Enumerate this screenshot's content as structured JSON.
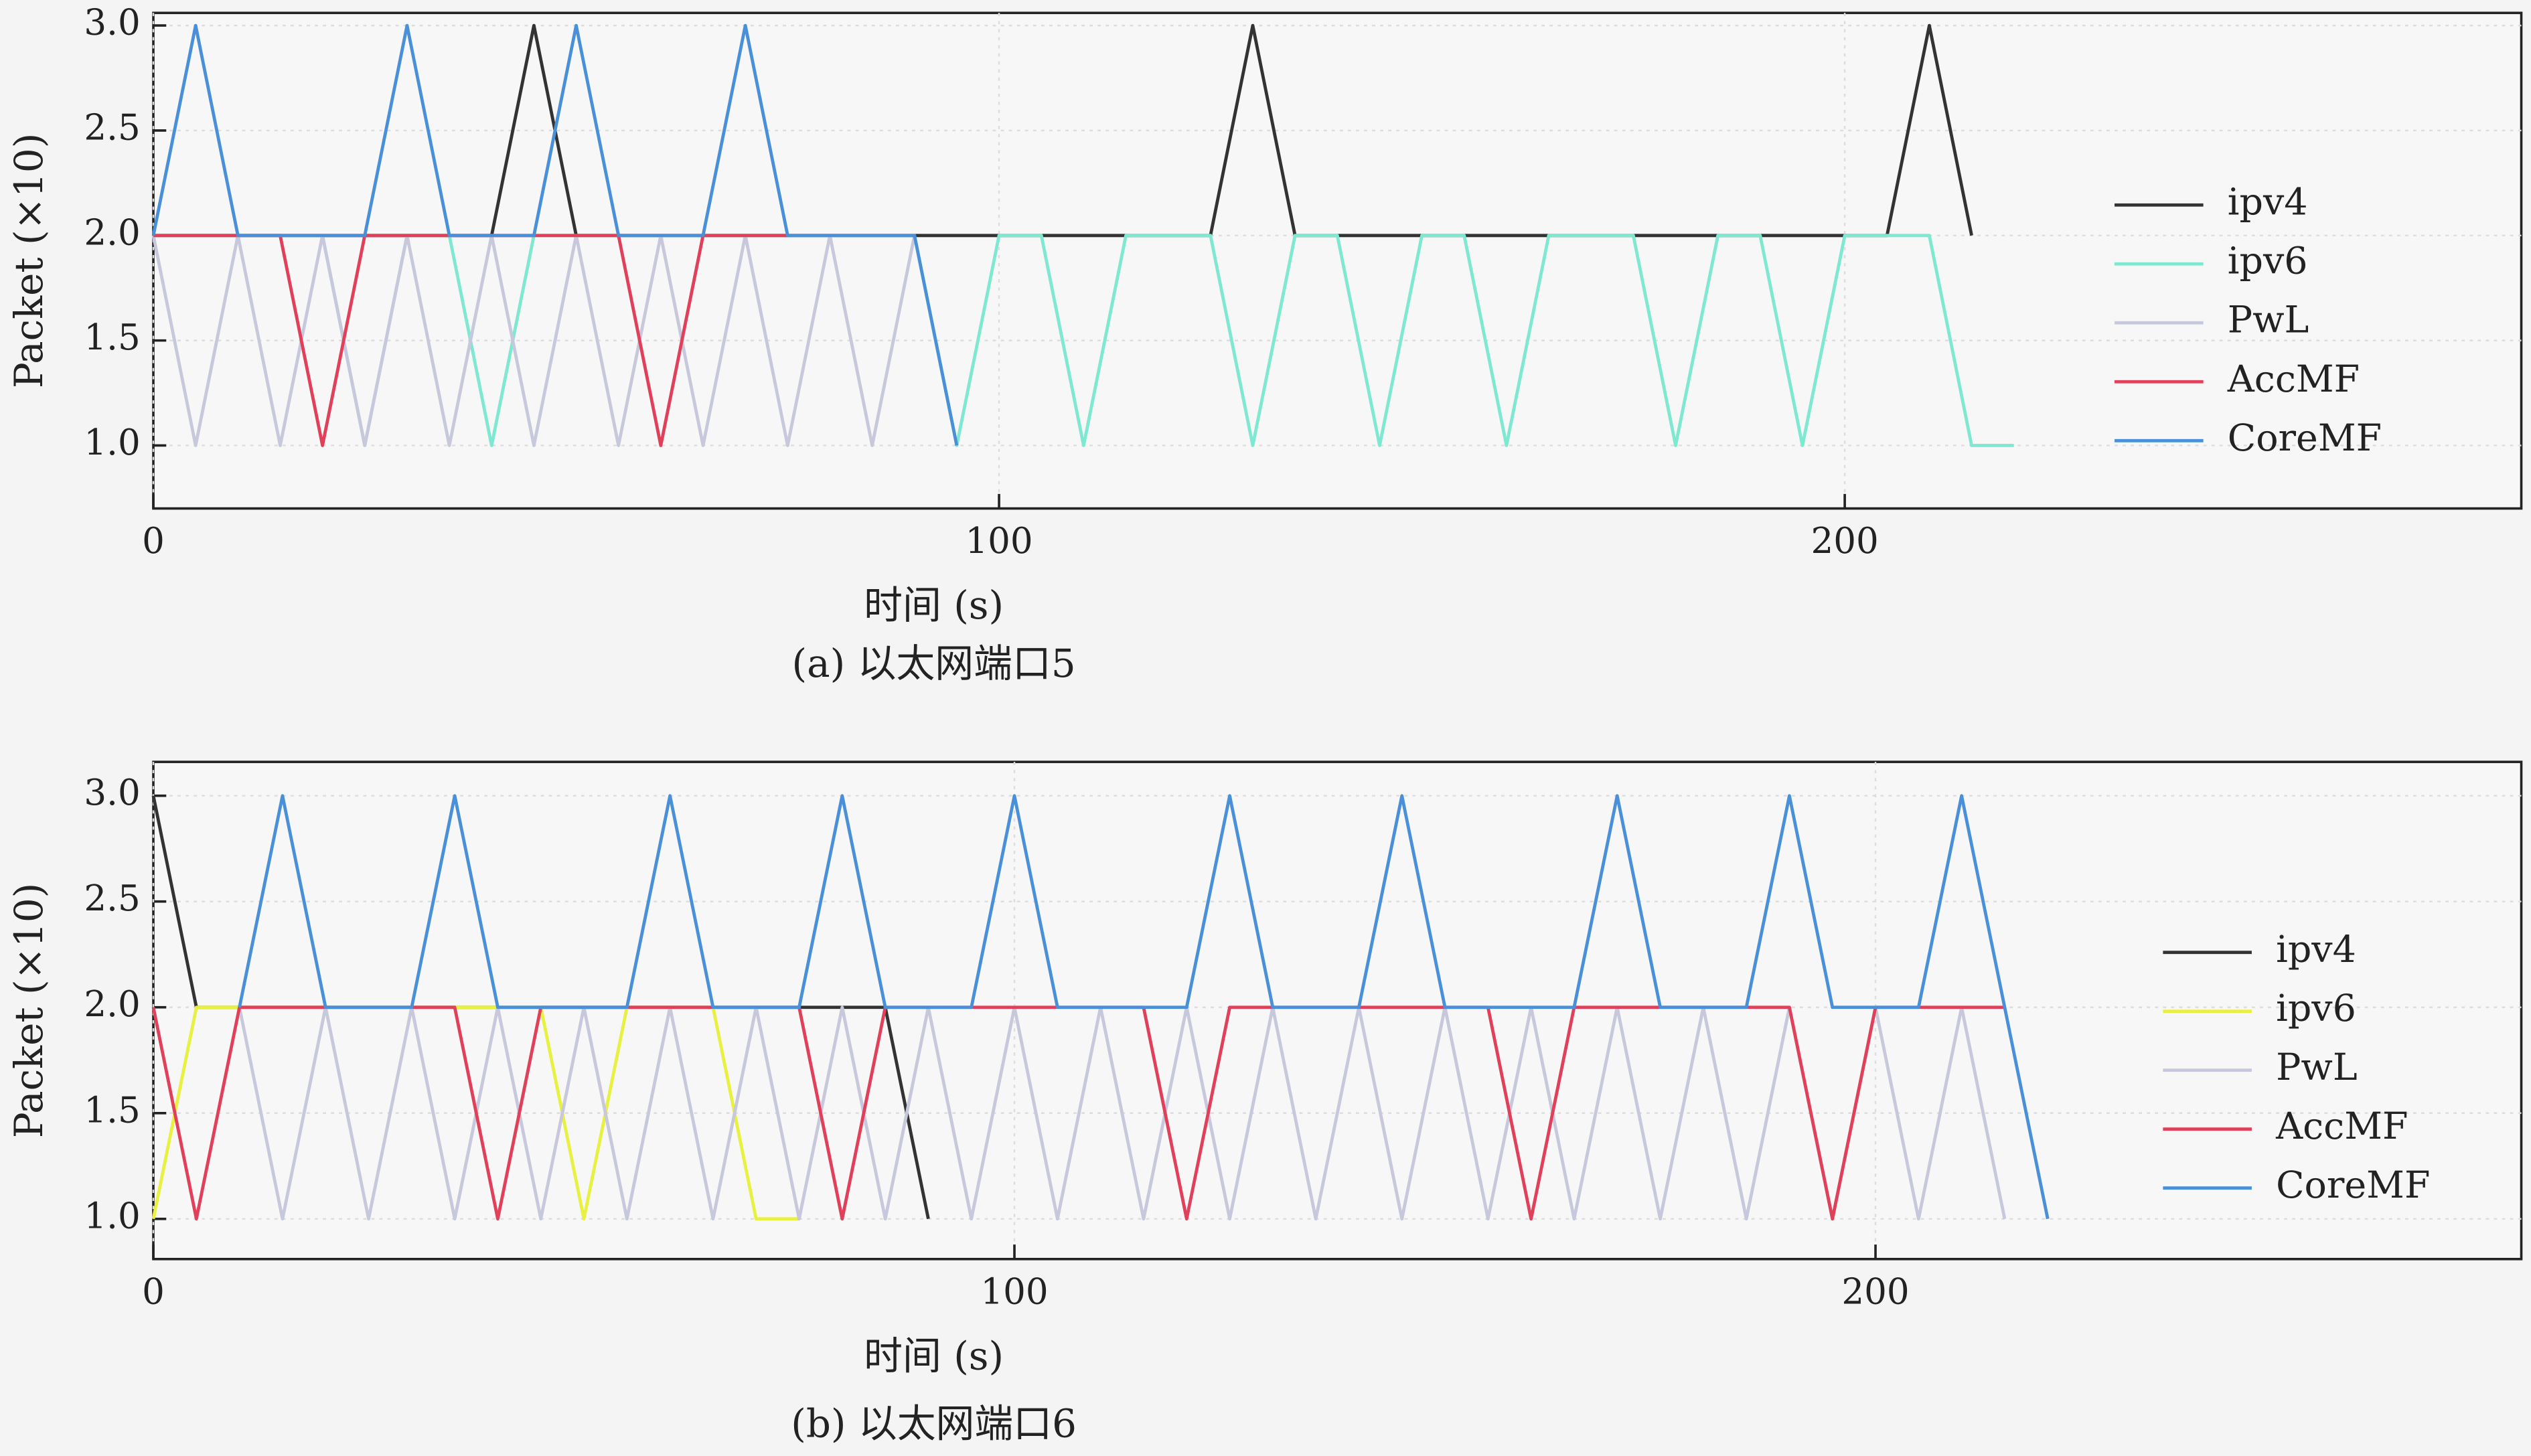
{
  "chart_data": [
    {
      "type": "line",
      "caption": "(a) 以太网端口5",
      "xlabel": "时间 (s)",
      "ylabel": "Packet (×10)",
      "xlim": [
        0,
        280
      ],
      "ylim": [
        0.7,
        3.06
      ],
      "xticks": [
        0,
        100,
        200
      ],
      "yticks": [
        {
          "value": 1,
          "label": "1.0"
        },
        {
          "value": 1.5,
          "label": "1.5"
        },
        {
          "value": 2,
          "label": "2.0"
        },
        {
          "value": 2.5,
          "label": "2.5"
        },
        {
          "value": 3,
          "label": "3.0"
        }
      ],
      "grid": true,
      "legend": "right",
      "series": [
        {
          "name": "ipv4",
          "color": "#333333",
          "x": [
            0,
            40,
            45,
            50,
            125,
            130,
            135,
            205,
            210,
            215
          ],
          "values": [
            2,
            2,
            3,
            2,
            2,
            3,
            2,
            2,
            3,
            2
          ]
        },
        {
          "name": "ipv6",
          "color": "#7fe8d0",
          "x": [
            0,
            20,
            25,
            30,
            35,
            40,
            45,
            90,
            95,
            100,
            105,
            110,
            115,
            125,
            130,
            135,
            140,
            145,
            150,
            155,
            160,
            165,
            175,
            180,
            185,
            190,
            195,
            200,
            210,
            215,
            220
          ],
          "values": [
            2,
            2,
            1,
            2,
            2,
            1,
            2,
            2,
            1,
            2,
            2,
            1,
            2,
            2,
            1,
            2,
            2,
            1,
            2,
            2,
            1,
            2,
            2,
            1,
            2,
            2,
            1,
            2,
            2,
            1,
            1
          ]
        },
        {
          "name": "PwL",
          "color": "#c8c8dc",
          "x": [
            0,
            5,
            10,
            15,
            20,
            25,
            30,
            35,
            40,
            45,
            50,
            55,
            60,
            65,
            70,
            75,
            80,
            85,
            90
          ],
          "values": [
            2,
            1,
            2,
            1,
            2,
            1,
            2,
            1,
            2,
            1,
            2,
            1,
            2,
            1,
            2,
            1,
            2,
            1,
            2
          ]
        },
        {
          "name": "AccMF",
          "color": "#e0405a",
          "x": [
            0,
            15,
            20,
            25,
            55,
            60,
            65,
            75
          ],
          "values": [
            2,
            2,
            1,
            2,
            2,
            1,
            2,
            2
          ]
        },
        {
          "name": "CoreMF",
          "color": "#4a90d8",
          "x": [
            0,
            5,
            10,
            25,
            30,
            35,
            45,
            50,
            55,
            65,
            70,
            75,
            90,
            95
          ],
          "values": [
            2,
            3,
            2,
            2,
            3,
            2,
            2,
            3,
            2,
            2,
            3,
            2,
            2,
            1
          ]
        }
      ]
    },
    {
      "type": "line",
      "caption": "(b) 以太网端口6",
      "xlabel": "时间 (s)",
      "ylabel": "Packet (×10)",
      "xlim": [
        0,
        275
      ],
      "ylim": [
        0.81,
        3.16
      ],
      "xticks": [
        0,
        100,
        200
      ],
      "yticks": [
        {
          "value": 1,
          "label": "1.0"
        },
        {
          "value": 1.5,
          "label": "1.5"
        },
        {
          "value": 2,
          "label": "2.0"
        },
        {
          "value": 2.5,
          "label": "2.5"
        },
        {
          "value": 3,
          "label": "3.0"
        }
      ],
      "grid": true,
      "legend": "right",
      "series": [
        {
          "name": "ipv4",
          "color": "#333333",
          "x": [
            0,
            5,
            85,
            90
          ],
          "values": [
            3,
            2,
            2,
            1
          ]
        },
        {
          "name": "ipv6",
          "color": "#e8f040",
          "x": [
            0,
            5,
            45,
            50,
            55,
            65,
            70,
            75
          ],
          "values": [
            1,
            2,
            2,
            1,
            2,
            2,
            1,
            1
          ]
        },
        {
          "name": "PwL",
          "color": "#c8c8dc",
          "x": [
            10,
            15,
            20,
            25,
            30,
            35,
            40,
            45,
            50,
            55,
            60,
            65,
            70,
            75,
            80,
            85,
            90,
            95,
            100,
            105,
            110,
            115,
            120,
            125,
            130,
            135,
            140,
            145,
            150,
            155,
            160,
            165,
            170,
            175,
            180,
            185,
            190,
            195,
            200,
            205,
            210,
            215
          ],
          "values": [
            2,
            1,
            2,
            1,
            2,
            1,
            2,
            1,
            2,
            1,
            2,
            1,
            2,
            1,
            2,
            1,
            2,
            1,
            2,
            1,
            2,
            1,
            2,
            1,
            2,
            1,
            2,
            1,
            2,
            1,
            2,
            1,
            2,
            1,
            2,
            1,
            2,
            1,
            2,
            1,
            2,
            1
          ]
        },
        {
          "name": "AccMF",
          "color": "#e0405a",
          "x": [
            0,
            5,
            10,
            35,
            40,
            45,
            75,
            80,
            85,
            115,
            120,
            125,
            155,
            160,
            165,
            190,
            195,
            200,
            215
          ],
          "values": [
            2,
            1,
            2,
            2,
            1,
            2,
            2,
            1,
            2,
            2,
            1,
            2,
            2,
            1,
            2,
            2,
            1,
            2,
            2
          ]
        },
        {
          "name": "CoreMF",
          "color": "#4a90d8",
          "x": [
            10,
            15,
            20,
            30,
            35,
            40,
            55,
            60,
            65,
            75,
            80,
            85,
            95,
            100,
            105,
            120,
            125,
            130,
            140,
            145,
            150,
            165,
            170,
            175,
            185,
            190,
            195,
            205,
            210,
            215,
            220
          ],
          "values": [
            2,
            3,
            2,
            2,
            3,
            2,
            2,
            3,
            2,
            2,
            3,
            2,
            2,
            3,
            2,
            2,
            3,
            2,
            2,
            3,
            2,
            2,
            3,
            2,
            2,
            3,
            2,
            2,
            3,
            2,
            1
          ]
        }
      ]
    }
  ]
}
